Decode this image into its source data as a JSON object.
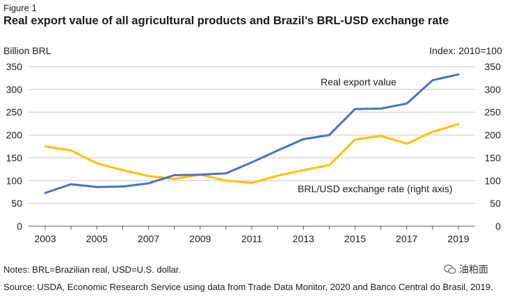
{
  "figure_label": "Figure 1",
  "title": "Real export value of all agricultural products and Brazil’s BRL-USD exchange rate",
  "notes": "Notes: BRL=Brazilian real, USD=U.S. dollar.",
  "source": "Source: USDA, Economic Research Service using data from Trade Data Monitor, 2020 and Banco Central do Brasil, 2019.",
  "watermark_text": "油粕面",
  "chart_data": {
    "type": "line",
    "title": "Real export value of all agricultural products and Brazil’s BRL-USD exchange rate",
    "left_axis_label": "Billion BRL",
    "right_axis_label": "Index: 2010=100",
    "xlabel": "",
    "x": [
      2003,
      2004,
      2005,
      2006,
      2007,
      2008,
      2009,
      2010,
      2011,
      2012,
      2013,
      2014,
      2015,
      2016,
      2017,
      2018,
      2019
    ],
    "x_tick_labels": [
      "2003",
      "2005",
      "2007",
      "2009",
      "2011",
      "2013",
      "2015",
      "2017",
      "2019"
    ],
    "x_tick_values": [
      2003,
      2005,
      2007,
      2009,
      2011,
      2013,
      2015,
      2017,
      2019
    ],
    "ylim": [
      0,
      350
    ],
    "y_ticks": [
      0,
      50,
      100,
      150,
      200,
      250,
      300,
      350
    ],
    "y_tick_labels": [
      "0",
      "50",
      "100",
      "150",
      "200",
      "250",
      "300",
      "350"
    ],
    "grid": "horizontal",
    "series": [
      {
        "name": "Real export value",
        "axis": "left",
        "color": "#4472c4",
        "values": [
          73,
          92,
          86,
          87,
          94,
          112,
          113,
          116,
          140,
          166,
          191,
          200,
          257,
          258,
          269,
          320,
          333
        ]
      },
      {
        "name": "BRL/USD exchange rate (right axis)",
        "axis": "right",
        "color": "#ffc000",
        "values": [
          175,
          166,
          138,
          123,
          110,
          104,
          113,
          100,
          95,
          111,
          123,
          134,
          190,
          198,
          181,
          207,
          224
        ]
      }
    ]
  }
}
